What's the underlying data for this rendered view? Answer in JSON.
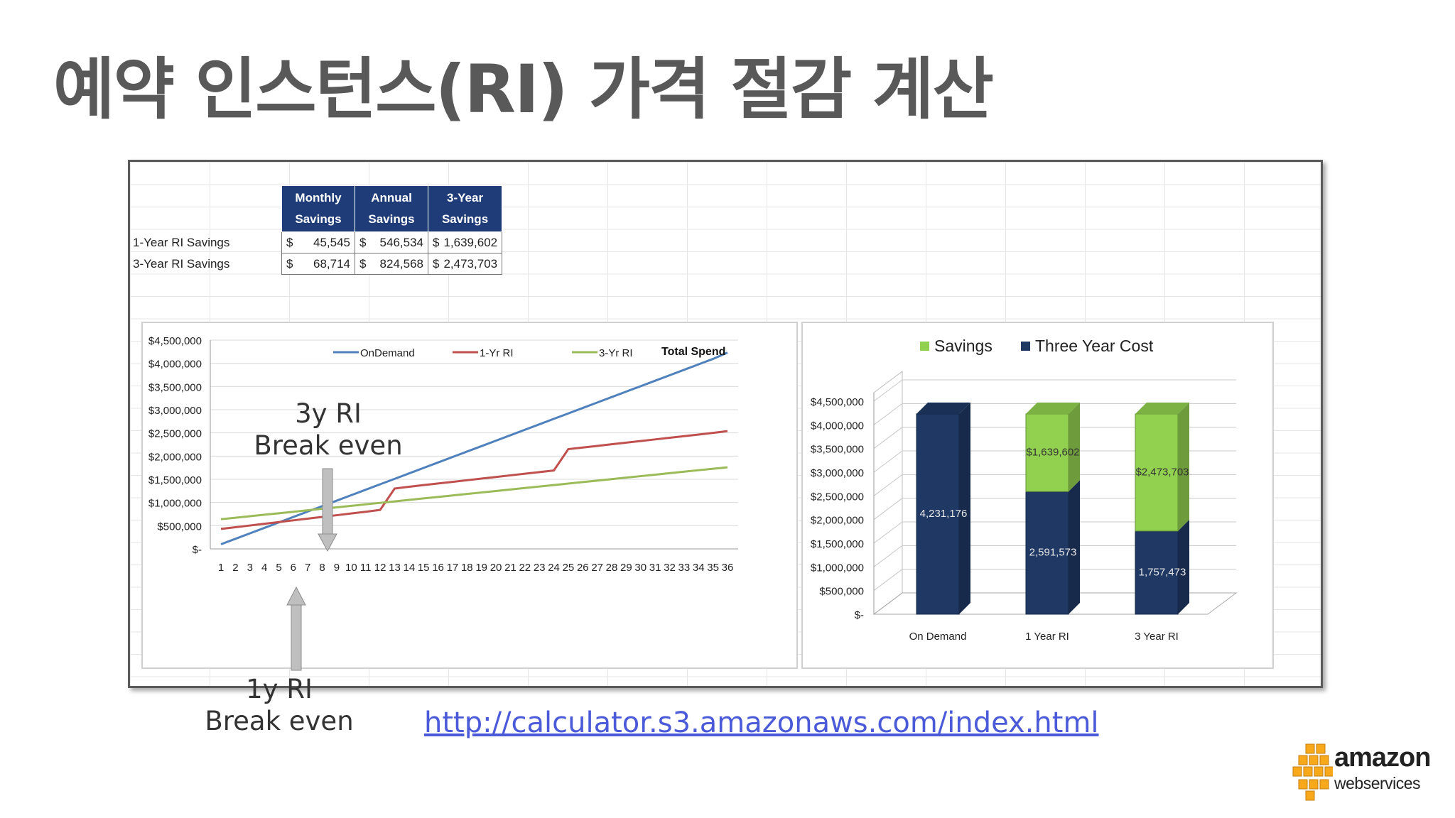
{
  "slide": {
    "title": "예약 인스턴스(RI) 가격 절감 계산",
    "annotation_3y_line1": "3y RI",
    "annotation_3y_line2": "Break even",
    "annotation_1y_line1": "1y RI",
    "annotation_1y_line2": "Break even",
    "link": "http://calculator.s3.amazonaws.com/index.html"
  },
  "logo": {
    "word": "amazon",
    "sub": "webservices",
    "icon": "aws-cubes-icon",
    "color": "#f7a81b"
  },
  "table": {
    "headers": [
      [
        "Monthly",
        "Savings"
      ],
      [
        "Annual",
        "Savings"
      ],
      [
        "3-Year",
        "Savings"
      ]
    ],
    "rows": [
      {
        "label": "1-Year RI Savings",
        "values": [
          "45,545",
          "546,534",
          "1,639,602"
        ]
      },
      {
        "label": "3-Year RI Savings",
        "values": [
          "68,714",
          "824,568",
          "2,473,703"
        ]
      }
    ],
    "currency": "$",
    "header_color": "#1f3c78"
  },
  "chart_data": [
    {
      "type": "line",
      "title": "Total Spend",
      "x": [
        1,
        2,
        3,
        4,
        5,
        6,
        7,
        8,
        9,
        10,
        11,
        12,
        13,
        14,
        15,
        16,
        17,
        18,
        19,
        20,
        21,
        22,
        23,
        24,
        25,
        26,
        27,
        28,
        29,
        30,
        31,
        32,
        33,
        34,
        35,
        36
      ],
      "y_ticks": [
        "$-",
        "$500,000",
        "$1,000,000",
        "$1,500,000",
        "$2,000,000",
        "$2,500,000",
        "$3,000,000",
        "$3,500,000",
        "$4,000,000",
        "$4,500,000"
      ],
      "ylim": [
        0,
        4500000
      ],
      "legend_position": "top",
      "series": [
        {
          "name": "OnDemand",
          "color": "#4f81bd",
          "values": [
            100000,
            217500,
            335000,
            452500,
            570000,
            687500,
            805000,
            922500,
            1040000,
            1157500,
            1275000,
            1392500,
            1510000,
            1627500,
            1745000,
            1862500,
            1980000,
            2097500,
            2215000,
            2332500,
            2450000,
            2567500,
            2685000,
            2802500,
            2920000,
            3037500,
            3155000,
            3272500,
            3390000,
            3507500,
            3625000,
            3742500,
            3860000,
            3977500,
            4095000,
            4231176
          ]
        },
        {
          "name": "1-Yr RI",
          "color": "#c0504d",
          "values": [
            430000,
            467000,
            504000,
            541000,
            578000,
            615000,
            652000,
            689000,
            726000,
            763000,
            800000,
            840000,
            1300000,
            1340000,
            1375000,
            1410000,
            1445000,
            1480000,
            1515000,
            1550000,
            1585000,
            1620000,
            1655000,
            1690000,
            2150000,
            2185000,
            2220000,
            2255000,
            2290000,
            2325000,
            2360000,
            2395000,
            2430000,
            2465000,
            2500000,
            2540000
          ]
        },
        {
          "name": "3-Yr RI",
          "color": "#9bbb59",
          "values": [
            640000,
            672000,
            704000,
            736000,
            768000,
            800000,
            832000,
            864000,
            896000,
            928000,
            960000,
            992000,
            1024000,
            1056000,
            1088000,
            1120000,
            1152000,
            1184000,
            1216000,
            1248000,
            1280000,
            1312000,
            1344000,
            1376000,
            1408000,
            1440000,
            1472000,
            1504000,
            1536000,
            1568000,
            1600000,
            1632000,
            1664000,
            1696000,
            1728000,
            1757473
          ]
        }
      ]
    },
    {
      "type": "bar",
      "stacked": true,
      "categories": [
        "On Demand",
        "1 Year RI",
        "3 Year RI"
      ],
      "y_ticks": [
        "$-",
        "$500,000",
        "$1,000,000",
        "$1,500,000",
        "$2,000,000",
        "$2,500,000",
        "$3,000,000",
        "$3,500,000",
        "$4,000,000",
        "$4,500,000"
      ],
      "ylim": [
        0,
        4500000
      ],
      "legend_position": "top",
      "series": [
        {
          "name": "Three Year Cost",
          "color": "#1f3864",
          "values": [
            4231176,
            2591573,
            1757473
          ],
          "labels": [
            "4,231,176",
            "2,591,573",
            "1,757,473"
          ]
        },
        {
          "name": "Savings",
          "color": "#92d050",
          "values": [
            0,
            1639602,
            2473703
          ],
          "labels": [
            "",
            "$1,639,602",
            "$2,473,703"
          ]
        }
      ]
    }
  ]
}
